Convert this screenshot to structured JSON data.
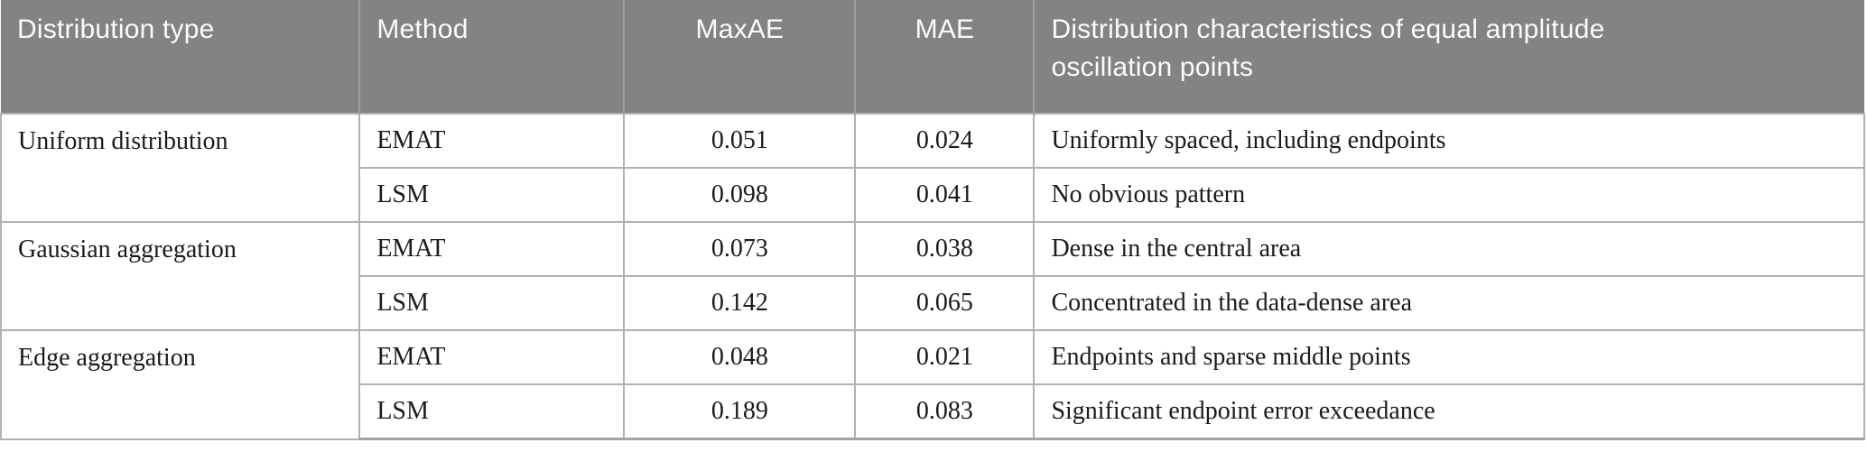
{
  "table": {
    "headers": {
      "distribution_type": "Distribution type",
      "method": "Method",
      "maxae": "MaxAE",
      "mae": "MAE",
      "characteristics": "Distribution characteristics of equal amplitude oscillation points"
    },
    "groups": [
      {
        "distribution_type": "Uniform distribution",
        "rows": [
          {
            "method": "EMAT",
            "maxae": "0.051",
            "mae": "0.024",
            "characteristics": "Uniformly spaced, including endpoints"
          },
          {
            "method": "LSM",
            "maxae": "0.098",
            "mae": "0.041",
            "characteristics": "No obvious pattern"
          }
        ]
      },
      {
        "distribution_type": "Gaussian aggregation",
        "rows": [
          {
            "method": "EMAT",
            "maxae": "0.073",
            "mae": "0.038",
            "characteristics": "Dense in the central area"
          },
          {
            "method": "LSM",
            "maxae": "0.142",
            "mae": "0.065",
            "characteristics": "Concentrated in the data-dense area"
          }
        ]
      },
      {
        "distribution_type": "Edge aggregation",
        "rows": [
          {
            "method": "EMAT",
            "maxae": "0.048",
            "mae": "0.021",
            "characteristics": "Endpoints and sparse middle points"
          },
          {
            "method": "LSM",
            "maxae": "0.189",
            "mae": "0.083",
            "characteristics": "Significant endpoint error exceedance"
          }
        ]
      }
    ],
    "colors": {
      "header_bg": "#838383",
      "header_text": "#fbfbfb",
      "header_separator": "#9d9d9d",
      "body_text": "#1b1b1b",
      "grid_border": "#b1b1b1",
      "bottom_border": "#a3a3a3"
    }
  },
  "chart_data": {
    "type": "table",
    "title": "",
    "columns": [
      "Distribution type",
      "Method",
      "MaxAE",
      "MAE",
      "Distribution characteristics of equal amplitude oscillation points"
    ],
    "rows": [
      [
        "Uniform distribution",
        "EMAT",
        0.051,
        0.024,
        "Uniformly spaced, including endpoints"
      ],
      [
        "Uniform distribution",
        "LSM",
        0.098,
        0.041,
        "No obvious pattern"
      ],
      [
        "Gaussian aggregation",
        "EMAT",
        0.073,
        0.038,
        "Dense in the central area"
      ],
      [
        "Gaussian aggregation",
        "LSM",
        0.142,
        0.065,
        "Concentrated in the data-dense area"
      ],
      [
        "Edge aggregation",
        "EMAT",
        0.048,
        0.021,
        "Endpoints and sparse middle points"
      ],
      [
        "Edge aggregation",
        "LSM",
        0.189,
        0.083,
        "Significant endpoint error exceedance"
      ]
    ]
  }
}
